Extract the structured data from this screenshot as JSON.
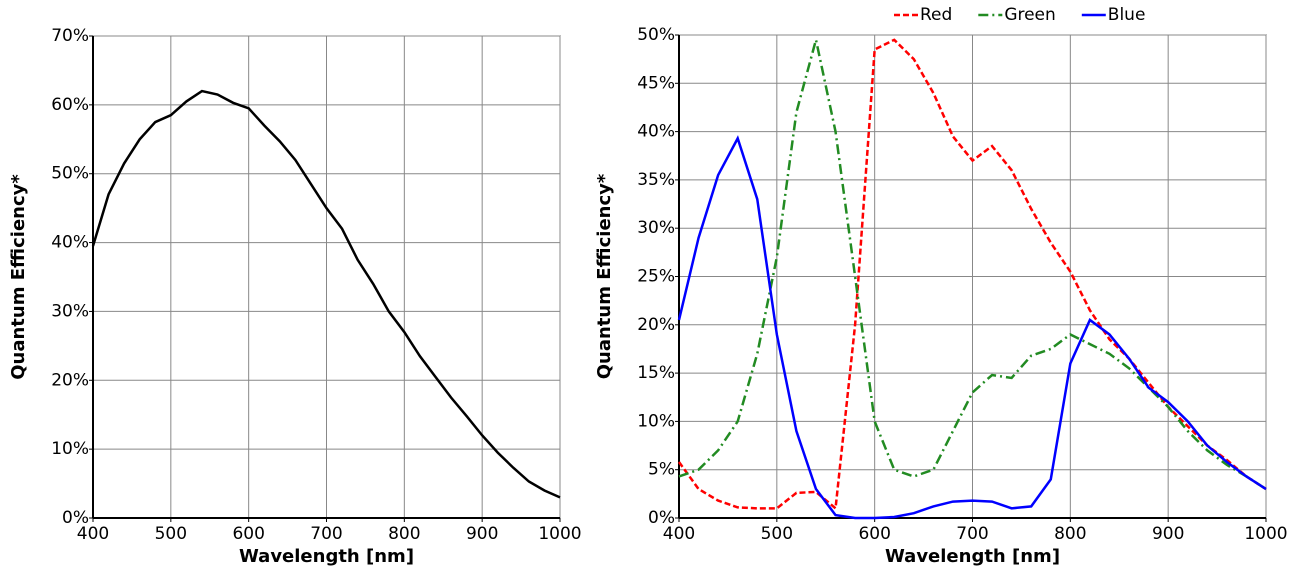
{
  "chart_data": [
    {
      "type": "line",
      "x_label": "Wavelength [nm]",
      "y_label": "Quantum Efficiency*",
      "x": [
        400,
        420,
        440,
        460,
        480,
        500,
        520,
        540,
        560,
        580,
        600,
        620,
        640,
        660,
        680,
        700,
        720,
        740,
        760,
        780,
        800,
        820,
        840,
        860,
        880,
        900,
        920,
        940,
        960,
        980,
        1000
      ],
      "series": [
        {
          "name": null,
          "color": "#000000",
          "dash": "solid",
          "values": [
            39.5,
            47,
            51.5,
            55,
            57.5,
            58.5,
            60.5,
            62,
            61.5,
            60.3,
            59.5,
            57,
            54.7,
            52,
            48.5,
            45,
            42,
            37.5,
            34,
            30,
            27,
            23.5,
            20.5,
            17.5,
            14.8,
            12,
            9.5,
            7.3,
            5.3,
            4,
            3
          ]
        }
      ],
      "xlim": [
        400,
        1000
      ],
      "xticks": [
        400,
        500,
        600,
        700,
        800,
        900,
        1000
      ],
      "ylim": [
        0,
        70
      ],
      "yticks": [
        {
          "value": 0,
          "label": "0%"
        },
        {
          "value": 10,
          "label": "10%"
        },
        {
          "value": 20,
          "label": "20%"
        },
        {
          "value": 30,
          "label": "30%"
        },
        {
          "value": 40,
          "label": "40%"
        },
        {
          "value": 50,
          "label": "50%"
        },
        {
          "value": 60,
          "label": "60%"
        },
        {
          "value": 70,
          "label": "70%"
        }
      ],
      "grid": true
    },
    {
      "type": "line",
      "x_label": "Wavelength [nm]",
      "y_label": "Quantum Efficiency*",
      "x": [
        400,
        420,
        440,
        460,
        480,
        500,
        520,
        540,
        560,
        580,
        600,
        620,
        640,
        660,
        680,
        700,
        720,
        740,
        760,
        780,
        800,
        820,
        840,
        860,
        880,
        900,
        920,
        940,
        960,
        980,
        1000
      ],
      "series": [
        {
          "name": "Red",
          "color": "#ff0000",
          "dash": "dashed",
          "values": [
            5.8,
            3,
            1.8,
            1.1,
            1,
            1,
            2.6,
            2.7,
            1,
            20,
            48.5,
            49.5,
            47.5,
            44,
            39.5,
            37,
            38.5,
            36,
            32,
            28.5,
            25.5,
            21.5,
            18.5,
            16.5,
            14,
            11.5,
            9.5,
            7.5,
            6,
            4.3,
            3
          ]
        },
        {
          "name": "Green",
          "color": "#228b22",
          "dash": "dashdot",
          "values": [
            4.3,
            5,
            7,
            10,
            17,
            27,
            42,
            49.5,
            40,
            25,
            10,
            5,
            4.3,
            5,
            9,
            13,
            14.8,
            14.5,
            16.8,
            17.5,
            19,
            18,
            17,
            15.5,
            13.5,
            11.5,
            9,
            7,
            5.5,
            4.3,
            3
          ]
        },
        {
          "name": "Blue",
          "color": "#0000ff",
          "dash": "solid",
          "values": [
            20.5,
            29,
            35.5,
            39.3,
            33,
            19,
            9,
            3,
            0.3,
            0,
            0,
            0.1,
            0.5,
            1.2,
            1.7,
            1.8,
            1.7,
            1,
            1.2,
            4,
            16,
            20.5,
            19,
            16.5,
            13.5,
            12,
            10,
            7.5,
            5.8,
            4.3,
            3
          ]
        }
      ],
      "xlim": [
        400,
        1000
      ],
      "xticks": [
        400,
        500,
        600,
        700,
        800,
        900,
        1000
      ],
      "ylim": [
        0,
        50
      ],
      "yticks": [
        {
          "value": 0,
          "label": "0%"
        },
        {
          "value": 5,
          "label": "5%"
        },
        {
          "value": 10,
          "label": "10%"
        },
        {
          "value": 15,
          "label": "15%"
        },
        {
          "value": 20,
          "label": "20%"
        },
        {
          "value": 25,
          "label": "25%"
        },
        {
          "value": 30,
          "label": "30%"
        },
        {
          "value": 35,
          "label": "35%"
        },
        {
          "value": 40,
          "label": "40%"
        },
        {
          "value": 45,
          "label": "45%"
        },
        {
          "value": 50,
          "label": "50%"
        }
      ],
      "grid": true,
      "legend": "top"
    }
  ]
}
